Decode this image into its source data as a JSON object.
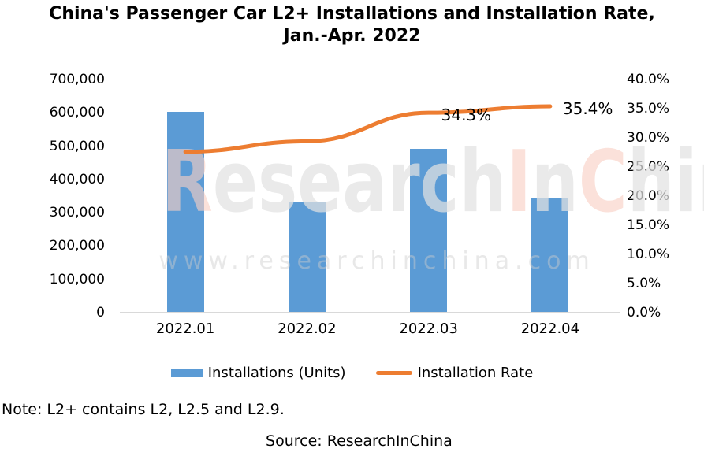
{
  "title": {
    "line1": "China's Passenger Car L2+ Installations and Installation Rate,",
    "line2": "Jan.-Apr. 2022"
  },
  "note": "Note: L2+ contains L2, L2.5 and L2.9.",
  "source": "Source: ResearchInChina",
  "watermark": {
    "segments": [
      {
        "text": "R",
        "accent": true
      },
      {
        "text": "esearch",
        "accent": false
      },
      {
        "text": "I",
        "accent": true
      },
      {
        "text": "n",
        "accent": false
      },
      {
        "text": "C",
        "accent": true
      },
      {
        "text": "hina",
        "accent": false
      }
    ],
    "url_text": "www.researchinchina.com"
  },
  "legend": {
    "items": [
      {
        "label": "Installations (Units)",
        "color": "#5B9BD5",
        "swatch": "bar"
      },
      {
        "label": "Installation Rate",
        "color": "#ED7D31",
        "swatch": "line"
      }
    ]
  },
  "colors": {
    "bar_blue": "#5B9BD5",
    "line_orange": "#ED7D31",
    "axis_line": "#D9D9D9",
    "text": "#000000"
  },
  "chart_data": {
    "type": "bar+line combo",
    "title": "China's Passenger Car L2+ Installations and Installation Rate, Jan.-Apr. 2022",
    "categories": [
      "2022.01",
      "2022.02",
      "2022.03",
      "2022.04"
    ],
    "series": [
      {
        "name": "Installations (Units)",
        "type": "bar",
        "axis": "left",
        "color": "#5B9BD5",
        "values": [
          603000,
          334000,
          491000,
          344000
        ]
      },
      {
        "name": "Installation Rate",
        "type": "line",
        "axis": "right",
        "color": "#ED7D31",
        "values_percent": [
          27.6,
          29.4,
          34.3,
          35.4
        ],
        "data_labels": [
          "",
          "",
          "34.3%",
          "35.4%"
        ]
      }
    ],
    "left_axis": {
      "min": 0,
      "max": 700000,
      "step": 100000,
      "tick_labels": [
        "0",
        "100,000",
        "200,000",
        "300,000",
        "400,000",
        "500,000",
        "600,000",
        "700,000"
      ]
    },
    "right_axis": {
      "min": 0,
      "max": 40,
      "step": 5,
      "tick_labels": [
        "0.0%",
        "5.0%",
        "10.0%",
        "15.0%",
        "20.0%",
        "25.0%",
        "30.0%",
        "35.0%",
        "40.0%"
      ]
    },
    "grid": false,
    "legend_position": "bottom"
  }
}
